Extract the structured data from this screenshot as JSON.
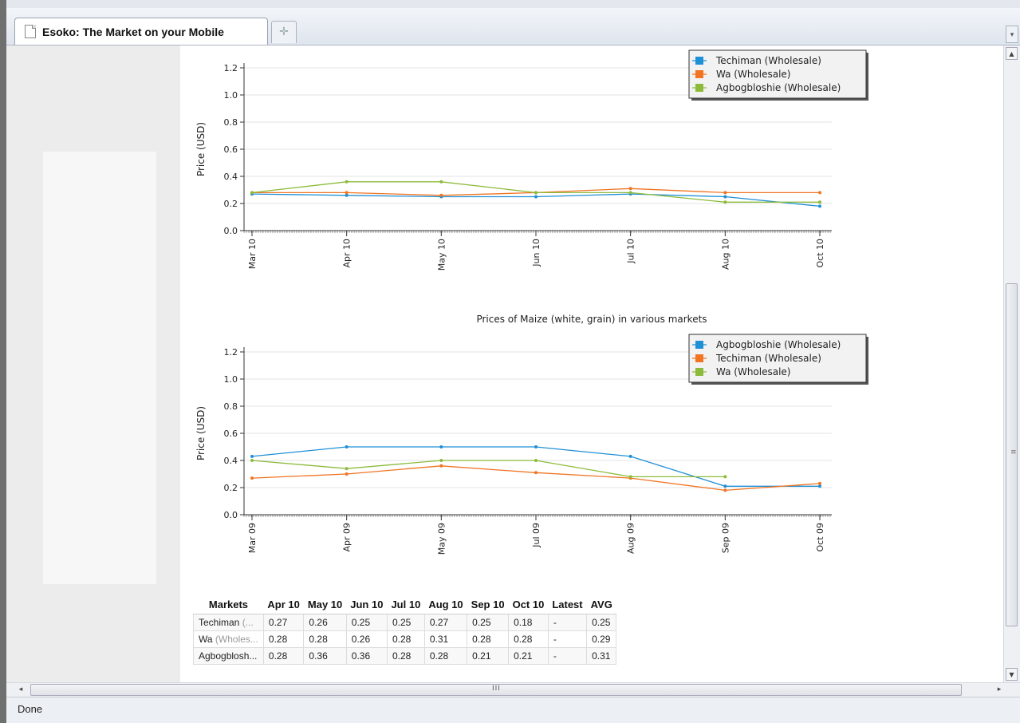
{
  "browser": {
    "tab_title": "Esoko: The Market on your Mobile",
    "new_tab_icon": "plus-icon",
    "status": "Done"
  },
  "charts": [
    {
      "legend": [
        "Techiman (Wholesale)",
        "Wa (Wholesale)",
        "Agbogbloshie (Wholesale)"
      ]
    },
    {
      "legend": [
        "Agbogbloshie (Wholesale)",
        "Techiman (Wholesale)",
        "Wa (Wholesale)"
      ]
    }
  ],
  "chart_data": [
    {
      "type": "line",
      "title": "",
      "ylabel": "Price (USD)",
      "xlabel": "",
      "ylim": [
        0,
        1.2
      ],
      "yticks": [
        "0.0",
        "0.2",
        "0.4",
        "0.6",
        "0.8",
        "1.0",
        "1.2"
      ],
      "x_tick_labels": [
        "Mar 10",
        "Apr 10",
        "May 10",
        "Jun 10",
        "Jul 10",
        "Aug 10",
        "Oct 10"
      ],
      "grid": true,
      "legend_position": "top-right",
      "series": [
        {
          "name": "Techiman (Wholesale)",
          "color": "#1f8fd6",
          "values": [
            0.27,
            0.26,
            0.25,
            0.25,
            0.27,
            0.25,
            0.18
          ]
        },
        {
          "name": "Wa (Wholesale)",
          "color": "#f07422",
          "values": [
            0.28,
            0.28,
            0.26,
            0.28,
            0.31,
            0.28,
            0.28
          ]
        },
        {
          "name": "Agbogbloshie (Wholesale)",
          "color": "#8cbb3c",
          "values": [
            0.28,
            0.36,
            0.36,
            0.28,
            0.28,
            0.21,
            0.21
          ]
        }
      ]
    },
    {
      "type": "line",
      "title": "Prices of Maize (white, grain) in various markets",
      "ylabel": "Price (USD)",
      "xlabel": "",
      "ylim": [
        0,
        1.2
      ],
      "yticks": [
        "0.0",
        "0.2",
        "0.4",
        "0.6",
        "0.8",
        "1.0",
        "1.2"
      ],
      "x_tick_labels": [
        "Mar 09",
        "Apr 09",
        "May 09",
        "Jul 09",
        "Aug 09",
        "Sep 09",
        "Oct 09"
      ],
      "grid": true,
      "legend_position": "top-right",
      "series": [
        {
          "name": "Agbogbloshie (Wholesale)",
          "color": "#1f8fd6",
          "values": [
            0.43,
            0.5,
            0.5,
            0.5,
            0.43,
            0.21,
            0.21
          ]
        },
        {
          "name": "Techiman (Wholesale)",
          "color": "#f07422",
          "values": [
            0.27,
            0.3,
            0.36,
            0.31,
            0.27,
            0.18,
            0.23
          ]
        },
        {
          "name": "Wa (Wholesale)",
          "color": "#8cbb3c",
          "values": [
            0.4,
            0.34,
            0.4,
            0.4,
            0.28,
            0.28,
            null
          ]
        }
      ]
    }
  ],
  "table": {
    "headers": [
      "Markets",
      "Apr 10",
      "May 10",
      "Jun 10",
      "Jul 10",
      "Aug 10",
      "Sep 10",
      "Oct 10",
      "Latest",
      "AVG"
    ],
    "rows": [
      {
        "market": "Techiman",
        "market_suffix": " (...",
        "values": [
          "0.27",
          "0.26",
          "0.25",
          "0.25",
          "0.27",
          "0.25",
          "0.18",
          "-",
          "0.25"
        ]
      },
      {
        "market": "Wa",
        "market_suffix": " (Wholes...",
        "values": [
          "0.28",
          "0.28",
          "0.26",
          "0.28",
          "0.31",
          "0.28",
          "0.28",
          "-",
          "0.29"
        ]
      },
      {
        "market": "Agbogblosh...",
        "market_suffix": "",
        "values": [
          "0.28",
          "0.36",
          "0.36",
          "0.28",
          "0.28",
          "0.21",
          "0.21",
          "-",
          "0.31"
        ]
      }
    ]
  }
}
